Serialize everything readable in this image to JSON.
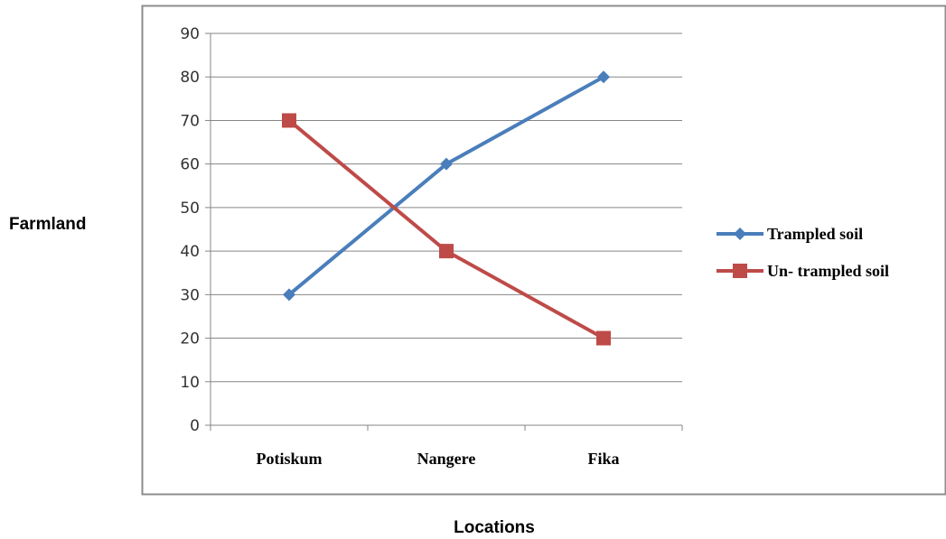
{
  "chart_data": {
    "type": "line",
    "categories": [
      "Potiskum",
      "Nangere",
      "Fika"
    ],
    "series": [
      {
        "name": "Trampled soil",
        "values": [
          30,
          60,
          80
        ],
        "color": "#4a7ebb",
        "marker": "diamond"
      },
      {
        "name": "Un- trampled soil",
        "values": [
          70,
          40,
          20
        ],
        "color": "#be4b48",
        "marker": "square"
      }
    ],
    "xlabel": "Locations",
    "ylabel": "Farmland",
    "ylim": [
      0,
      90
    ],
    "yticks": [
      0,
      10,
      20,
      30,
      40,
      50,
      60,
      70,
      80,
      90
    ],
    "grid": true,
    "legend_position": "right"
  }
}
